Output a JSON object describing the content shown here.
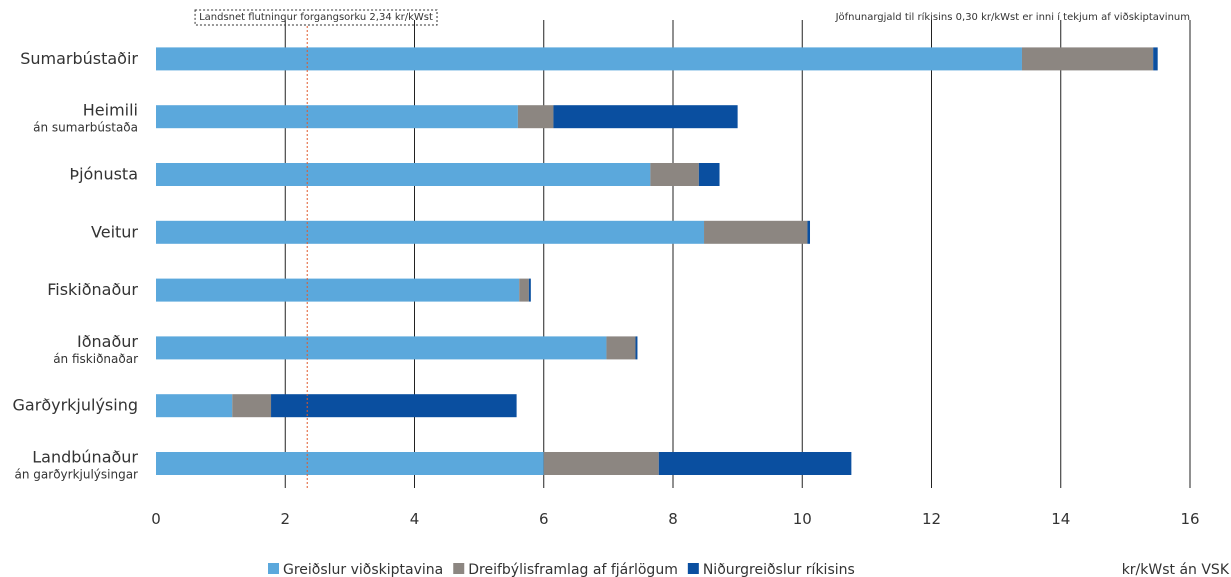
{
  "chart_data": {
    "type": "bar",
    "orientation": "horizontal",
    "stacked": true,
    "categories": [
      {
        "label": "Sumarbústaðir",
        "sublabel": ""
      },
      {
        "label": "Heimili",
        "sublabel": "án sumarbústaða"
      },
      {
        "label": "Þjónusta",
        "sublabel": ""
      },
      {
        "label": "Veitur",
        "sublabel": ""
      },
      {
        "label": "Fiskiðnaður",
        "sublabel": ""
      },
      {
        "label": "Iðnaður",
        "sublabel": "án fiskiðnaðar"
      },
      {
        "label": "Garðyrkjulýsing",
        "sublabel": ""
      },
      {
        "label": "Landbúnaður",
        "sublabel": "án garðyrkjulýsingar"
      }
    ],
    "series": [
      {
        "name": "Greiðslur viðskiptavina",
        "color": "#5ba8dc",
        "values": [
          13.4,
          5.6,
          7.65,
          8.48,
          5.62,
          6.97,
          1.18,
          6.0
        ]
      },
      {
        "name": "Dreifbýlisframlag af fjárlögum",
        "color": "#8c8681",
        "values": [
          2.03,
          0.55,
          0.75,
          1.6,
          0.15,
          0.45,
          0.6,
          1.78
        ]
      },
      {
        "name": "Niðurgreiðslur ríkisins",
        "color": "#0a4fa0",
        "values": [
          0.07,
          2.85,
          0.32,
          0.04,
          0.03,
          0.03,
          3.8,
          2.98
        ]
      }
    ],
    "xlim": [
      0,
      16
    ],
    "xticks": [
      "0",
      "2",
      "4",
      "6",
      "8",
      "10",
      "12",
      "14",
      "16"
    ],
    "xlabel": "kr/kWst án VSK",
    "reference_line": {
      "value": 2.34,
      "color": "#e05a2b",
      "label": "Landsnet flutningur forgangsorku 2,34 kr/kWst"
    },
    "note": "Jöfnunargjald til ríkisins 0,30 kr/kWst er inni í tekjum af viðskiptavinum",
    "grid": "vertical",
    "legend_position": "bottom"
  }
}
